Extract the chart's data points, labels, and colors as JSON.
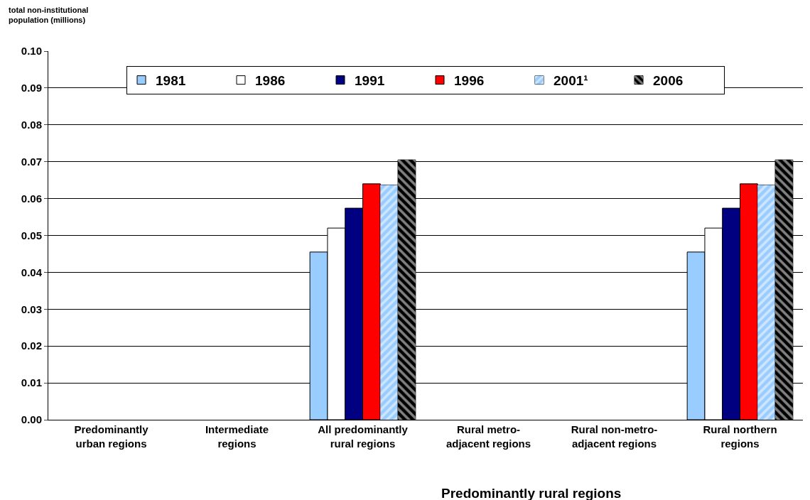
{
  "chart_data": {
    "type": "bar",
    "ylabel": "total non-institutional\npopulation (millions)",
    "xlabel": "Predominantly rural regions",
    "categories": [
      "Predominantly\nurban regions",
      "Intermediate\nregions",
      "All predominantly\nrural regions",
      "Rural metro-\nadjacent regions",
      "Rural non-metro-\nadjacent regions",
      "Rural northern\nregions"
    ],
    "series": [
      {
        "name": "1981",
        "color": "#99ccff",
        "values": [
          null,
          null,
          0.0455,
          null,
          null,
          0.0455
        ]
      },
      {
        "name": "1986",
        "color": "#ffffff",
        "values": [
          null,
          null,
          0.052,
          null,
          null,
          0.052
        ]
      },
      {
        "name": "1991",
        "color": "#000080",
        "values": [
          null,
          null,
          0.0574,
          null,
          null,
          0.0574
        ]
      },
      {
        "name": "1996",
        "color": "#ff0000",
        "values": [
          null,
          null,
          0.064,
          null,
          null,
          0.064
        ]
      },
      {
        "name": "2001¹",
        "color": "#99ccff",
        "values": [
          null,
          null,
          0.0637,
          null,
          null,
          0.0637
        ]
      },
      {
        "name": "2006",
        "color": "#000000",
        "values": [
          null,
          null,
          0.0705,
          null,
          null,
          0.0705
        ]
      }
    ],
    "ylim": [
      0,
      0.1
    ],
    "yticks": [
      {
        "value": 0,
        "label": "0.00"
      },
      {
        "value": 0.01,
        "label": "0.01"
      },
      {
        "value": 0.02,
        "label": "0.02"
      },
      {
        "value": 0.03,
        "label": "0.03"
      },
      {
        "value": 0.04,
        "label": "0.04"
      },
      {
        "value": 0.05,
        "label": "0.05"
      },
      {
        "value": 0.06,
        "label": "0.06"
      },
      {
        "value": 0.07,
        "label": "0.07"
      },
      {
        "value": 0.08,
        "label": "0.08"
      },
      {
        "value": 0.09,
        "label": "0.09"
      },
      {
        "value": 0.1,
        "label": "0.10"
      }
    ],
    "grid": "y",
    "legend": "top"
  }
}
